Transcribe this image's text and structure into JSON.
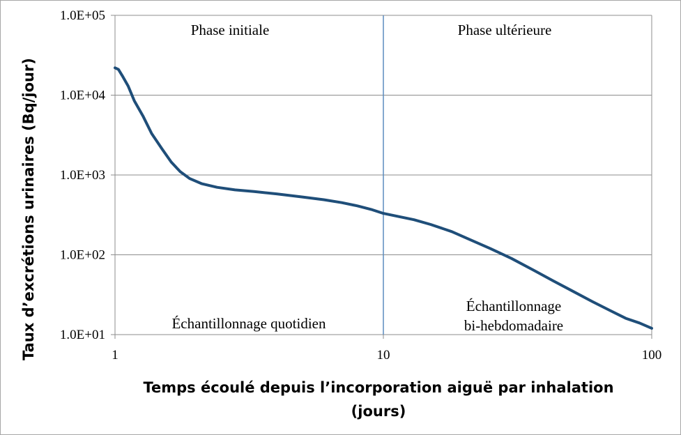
{
  "chart_data": {
    "type": "line",
    "xscale": "log",
    "yscale": "log",
    "xlim": [
      1,
      100
    ],
    "ylim": [
      10,
      100000
    ],
    "grid": true,
    "xlabel_lines": [
      "Temps écoulé depuis l’incorporation aiguë par inhalation",
      "(jours)"
    ],
    "ylabel": "Taux d’excrétions urinaires (Bq/jour)",
    "x_ticks": [
      {
        "value": 1,
        "label": "1"
      },
      {
        "value": 10,
        "label": "10"
      },
      {
        "value": 100,
        "label": "100"
      }
    ],
    "y_ticks": [
      {
        "value": 10,
        "label": "1.0E+01"
      },
      {
        "value": 100,
        "label": "1.0E+02"
      },
      {
        "value": 1000,
        "label": "1.0E+03"
      },
      {
        "value": 10000,
        "label": "1.0E+04"
      },
      {
        "value": 100000,
        "label": "1.0E+05"
      }
    ],
    "divider_x": 10,
    "annotations": {
      "phase_initiale": "Phase initiale",
      "phase_ulterieure": "Phase ultérieure",
      "echantillonnage_quotidien": "Échantillonnage quotidien",
      "echantillonnage_bihebdo": [
        "Échantillonnage",
        "bi-hebdomadaire"
      ]
    },
    "series": [
      {
        "color": "#1f4e79",
        "x": [
          1.0,
          1.03,
          1.07,
          1.12,
          1.18,
          1.27,
          1.37,
          1.5,
          1.62,
          1.75,
          1.9,
          2.1,
          2.4,
          2.8,
          3.3,
          4.0,
          5.0,
          6.0,
          7.0,
          8.0,
          9.0,
          10.0,
          11.5,
          13.0,
          15.0,
          18.0,
          21.0,
          25.0,
          30.0,
          36.0,
          43.0,
          50.0,
          60.0,
          70.0,
          80.0,
          90.0,
          100.0
        ],
        "y": [
          22000,
          21000,
          17000,
          13000,
          8500,
          5500,
          3300,
          2100,
          1450,
          1100,
          900,
          780,
          700,
          650,
          620,
          580,
          530,
          490,
          450,
          410,
          370,
          330,
          300,
          275,
          240,
          195,
          155,
          120,
          90,
          65,
          47,
          36,
          26,
          20,
          16,
          14,
          12
        ]
      }
    ]
  }
}
